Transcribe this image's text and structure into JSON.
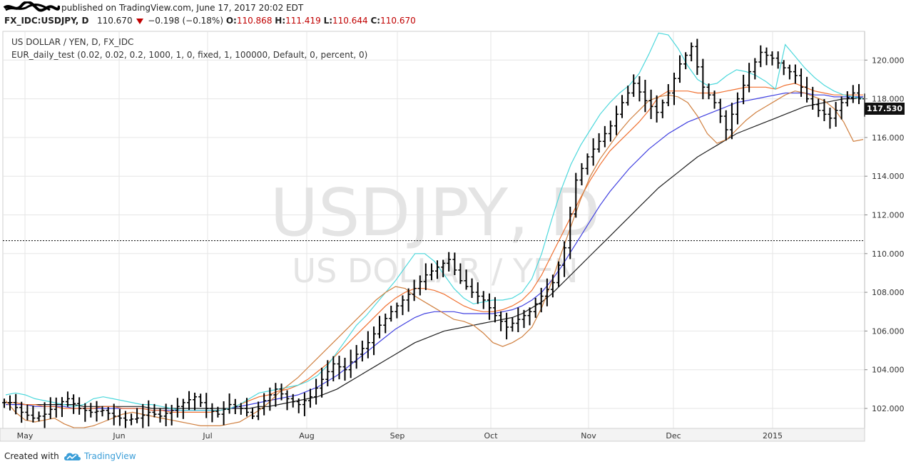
{
  "header": {
    "published_text": "published on TradingView.com, June 17, 2017 20:02 EDT",
    "symbol": "FX_IDC:USDJPY, D",
    "last": "110.670",
    "change": "−0.198 (−0.18%)",
    "o_label": "O:",
    "o_value": "110.868",
    "h_label": "H:",
    "h_value": "111.419",
    "l_label": "L:",
    "l_value": "110.644",
    "c_label": "C:",
    "c_value": "110.670"
  },
  "legend": {
    "line1": "US DOLLAR / YEN, D, FX_IDC",
    "line2": "EUR_daily_test (0.02, 0.02, 0.2, 1000, 1, 0, fixed, 1, 100000, Default, 0, percent, 0)"
  },
  "watermark": {
    "big": "USDJPY, D",
    "small": "US DOLLAR / YEN"
  },
  "price_badge": "117.530",
  "footer": {
    "created": "Created with",
    "brand": "TradingView"
  },
  "colors": {
    "candles": "#000000",
    "cyan_line": "#4dd8dc",
    "orange_line": "#f07030",
    "blue_line": "#4040e0",
    "black_line": "#202020",
    "brown_stop": "#d08040",
    "dotted_line": "#000000",
    "grid": "#e6e6e6",
    "tv_blue": "#3b9ed8"
  },
  "chart_data": {
    "type": "ohlc",
    "title": "US DOLLAR / YEN, D, FX_IDC",
    "ylim": [
      101,
      121.5
    ],
    "y_ticks": [
      "102.000",
      "104.000",
      "106.000",
      "108.000",
      "110.000",
      "112.000",
      "114.000",
      "116.000",
      "118.000",
      "120.000"
    ],
    "x_ticks": [
      "May",
      "Jun",
      "Jul",
      "Aug",
      "Sep",
      "Oct",
      "Nov",
      "Dec",
      "2015"
    ],
    "dotted_level": 110.67,
    "last_price": 117.53,
    "series": [
      {
        "name": "EUR_daily_test",
        "type": "stop",
        "values": [
          102.4,
          101.8,
          101.4,
          101.3,
          101.4,
          101.5,
          101.2,
          101.0,
          101.0,
          101.1,
          101.3,
          101.5,
          101.7,
          101.8,
          101.7,
          101.6,
          101.5,
          101.4,
          101.3,
          101.2,
          101.1,
          101.1,
          101.1,
          101.2,
          101.3,
          101.6,
          101.9,
          102.3,
          102.8,
          103.2,
          103.6,
          104.1,
          104.6,
          105.1,
          105.6,
          106.1,
          106.6,
          107.1,
          107.6,
          108.0,
          108.3,
          108.2,
          107.8,
          107.5,
          107.2,
          106.9,
          106.6,
          106.5,
          106.3,
          105.9,
          105.4,
          105.2,
          105.4,
          105.7,
          106.2,
          107.2,
          108.5,
          110.0,
          111.4,
          112.8,
          114.0,
          114.9,
          115.6,
          116.3,
          116.9,
          117.4,
          117.9,
          118.1,
          118.2,
          118.1,
          117.8,
          117.1,
          116.2,
          115.7,
          115.9,
          116.4,
          116.9,
          117.3,
          117.6,
          117.9,
          118.2,
          118.4,
          118.3,
          118.1,
          117.9,
          117.5,
          116.8,
          115.8,
          115.9
        ]
      },
      {
        "name": "cyan",
        "type": "line",
        "values": [
          102.7,
          102.8,
          102.7,
          102.5,
          102.4,
          102.3,
          102.2,
          102.1,
          102.2,
          102.5,
          102.6,
          102.5,
          102.4,
          102.3,
          102.2,
          102.2,
          102.1,
          102.0,
          101.9,
          101.9,
          101.9,
          101.9,
          101.9,
          102.0,
          102.2,
          102.5,
          102.8,
          102.9,
          103.0,
          103.1,
          103.2,
          103.4,
          103.7,
          104.2,
          104.9,
          105.6,
          106.3,
          106.8,
          107.4,
          108.0,
          108.6,
          109.3,
          110.0,
          110.0,
          109.6,
          108.9,
          108.2,
          107.7,
          107.4,
          107.5,
          107.6,
          107.6,
          107.7,
          108.0,
          108.7,
          110.0,
          111.7,
          113.3,
          114.6,
          115.6,
          116.4,
          117.2,
          117.8,
          118.3,
          118.7,
          119.3,
          120.3,
          121.4,
          121.3,
          120.6,
          119.7,
          119.0,
          118.7,
          118.8,
          119.2,
          119.5,
          119.4,
          119.2,
          118.9,
          118.5,
          120.8,
          120.2,
          119.6,
          119.1,
          118.7,
          118.4,
          118.2,
          118.1,
          118.0
        ]
      },
      {
        "name": "orange",
        "type": "line",
        "values": [
          102.3,
          102.3,
          102.2,
          102.2,
          102.1,
          102.1,
          102.0,
          102.0,
          102.0,
          102.0,
          102.1,
          102.1,
          102.0,
          102.0,
          102.0,
          101.9,
          101.9,
          101.8,
          101.8,
          101.8,
          101.8,
          101.8,
          101.9,
          102.0,
          102.2,
          102.4,
          102.6,
          102.7,
          102.9,
          103.0,
          103.2,
          103.5,
          103.9,
          104.3,
          104.8,
          105.3,
          105.8,
          106.3,
          106.8,
          107.3,
          107.7,
          108.0,
          108.2,
          108.2,
          108.1,
          107.9,
          107.6,
          107.3,
          107.1,
          107.0,
          107.0,
          107.1,
          107.3,
          107.6,
          108.1,
          108.9,
          109.9,
          110.9,
          111.9,
          112.9,
          113.8,
          114.6,
          115.3,
          115.8,
          116.3,
          116.8,
          117.4,
          118.1,
          118.4,
          118.4,
          118.4,
          118.3,
          118.3,
          118.3,
          118.4,
          118.5,
          118.6,
          118.6,
          118.6,
          118.5,
          118.7,
          118.8,
          118.6,
          118.4,
          118.3,
          118.2,
          118.2,
          118.2,
          118.2
        ]
      },
      {
        "name": "blue",
        "type": "line",
        "values": [
          102.2,
          102.2,
          102.2,
          102.1,
          102.1,
          102.1,
          102.1,
          102.0,
          102.0,
          102.0,
          102.0,
          102.0,
          102.0,
          102.0,
          102.0,
          101.9,
          101.9,
          101.9,
          101.9,
          101.9,
          101.9,
          101.9,
          101.9,
          102.0,
          102.1,
          102.2,
          102.3,
          102.4,
          102.5,
          102.6,
          102.7,
          102.9,
          103.1,
          103.4,
          103.7,
          104.1,
          104.5,
          104.9,
          105.3,
          105.7,
          106.1,
          106.4,
          106.7,
          106.9,
          107.0,
          107.0,
          107.0,
          106.9,
          106.9,
          106.9,
          106.9,
          107.0,
          107.1,
          107.3,
          107.6,
          108.0,
          108.6,
          109.3,
          110.1,
          110.9,
          111.7,
          112.5,
          113.2,
          113.8,
          114.4,
          114.9,
          115.4,
          115.8,
          116.2,
          116.5,
          116.8,
          117.0,
          117.2,
          117.4,
          117.6,
          117.8,
          117.9,
          118.0,
          118.1,
          118.2,
          118.3,
          118.3,
          118.3,
          118.2,
          118.2,
          118.1,
          118.1,
          118.1,
          118.1
        ]
      },
      {
        "name": "black",
        "type": "line",
        "values": [
          102.3,
          102.3,
          102.2,
          102.2,
          102.2,
          102.2,
          102.2,
          102.2,
          102.1,
          102.1,
          102.1,
          102.1,
          102.1,
          102.1,
          102.1,
          102.0,
          102.0,
          102.0,
          102.0,
          102.0,
          102.0,
          102.0,
          102.0,
          102.0,
          102.0,
          102.0,
          102.1,
          102.1,
          102.2,
          102.3,
          102.4,
          102.5,
          102.6,
          102.8,
          103.0,
          103.3,
          103.6,
          103.9,
          104.2,
          104.5,
          104.8,
          105.1,
          105.4,
          105.6,
          105.8,
          106.0,
          106.1,
          106.2,
          106.3,
          106.4,
          106.5,
          106.6,
          106.7,
          106.9,
          107.2,
          107.5,
          107.9,
          108.4,
          108.9,
          109.4,
          109.9,
          110.4,
          110.9,
          111.4,
          111.9,
          112.4,
          112.9,
          113.4,
          113.8,
          114.2,
          114.6,
          115.0,
          115.3,
          115.6,
          115.9,
          116.2,
          116.4,
          116.6,
          116.8,
          117.0,
          117.2,
          117.4,
          117.6,
          117.7,
          117.8,
          117.9,
          118.0,
          118.0,
          118.1
        ]
      }
    ]
  }
}
